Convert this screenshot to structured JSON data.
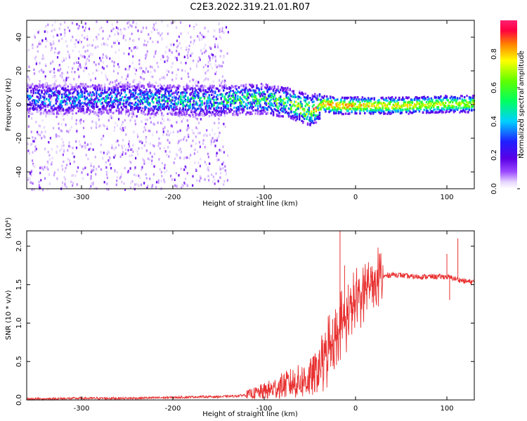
{
  "title": "C2E3.2022.319.21.01.R07",
  "chart_data": [
    {
      "type": "heatmap",
      "title": "",
      "xlabel": "Height of straight line (km)",
      "ylabel": "Frequency (Hz)",
      "xlim": [
        -360,
        130
      ],
      "ylim": [
        -50,
        50
      ],
      "xticks": [
        "-300",
        "-200",
        "-100",
        "0",
        "100"
      ],
      "yticks": [
        "-40",
        "-20",
        "0",
        "20",
        "40"
      ],
      "colorbar": {
        "label": "Normalized spectral amplitude",
        "range": [
          0,
          1
        ],
        "ticks": [
          "0.0",
          "0.2",
          "0.4",
          "0.6",
          "0.8"
        ]
      },
      "ridge": [
        {
          "x": -360,
          "f": 4
        },
        {
          "x": -300,
          "f": 4
        },
        {
          "x": -250,
          "f": 4
        },
        {
          "x": -200,
          "f": 3
        },
        {
          "x": -150,
          "f": 3
        },
        {
          "x": -100,
          "f": 4
        },
        {
          "x": -70,
          "f": 1
        },
        {
          "x": -50,
          "f": -3
        },
        {
          "x": -35,
          "f": 1
        },
        {
          "x": -20,
          "f": 0
        },
        {
          "x": 0,
          "f": 0
        },
        {
          "x": 50,
          "f": 0
        },
        {
          "x": 100,
          "f": 1
        },
        {
          "x": 130,
          "f": 1
        }
      ],
      "ridge_amplitude": [
        {
          "x": -360,
          "a": 0.35
        },
        {
          "x": -200,
          "a": 0.45
        },
        {
          "x": -100,
          "a": 0.55
        },
        {
          "x": -60,
          "a": 0.7
        },
        {
          "x": -30,
          "a": 0.85
        },
        {
          "x": 0,
          "a": 0.8
        },
        {
          "x": 130,
          "a": 0.7
        }
      ]
    },
    {
      "type": "line",
      "title": "",
      "xlabel": "Height of straight line (km)",
      "ylabel": "SNR (10 * v/v)",
      "y_multiplier": "(x10⁴)",
      "xlim": [
        -360,
        130
      ],
      "ylim": [
        0,
        2.2
      ],
      "xticks": [
        "-300",
        "-200",
        "-100",
        "0",
        "100"
      ],
      "yticks": [
        "0.0",
        "0.5",
        "1.0",
        "1.5",
        "2.0"
      ],
      "color": "#e83030",
      "series": [
        {
          "x": [
            -360,
            -300,
            -250,
            -200,
            -170,
            -150,
            -130,
            -110,
            -100,
            -90,
            -80,
            -70,
            -60,
            -50,
            -45,
            -40,
            -35,
            -30,
            -25,
            -20,
            -15,
            -10,
            -5,
            0,
            5,
            10,
            20,
            30,
            40,
            50,
            60,
            80,
            100,
            110,
            120,
            130
          ],
          "y": [
            0.01,
            0.02,
            0.02,
            0.03,
            0.04,
            0.04,
            0.05,
            0.08,
            0.1,
            0.13,
            0.17,
            0.2,
            0.22,
            0.25,
            0.3,
            0.38,
            0.5,
            0.62,
            0.75,
            0.85,
            0.95,
            1.05,
            1.15,
            1.25,
            1.35,
            1.43,
            1.52,
            1.6,
            1.63,
            1.62,
            1.6,
            1.6,
            1.6,
            1.57,
            1.54,
            1.53
          ],
          "spikes": [
            {
              "x": -17,
              "y": 2.2
            },
            {
              "x": -12,
              "y": 1.75
            },
            {
              "x": -8,
              "y": 1.5
            },
            {
              "x": -25,
              "y": 1.05
            },
            {
              "x": -40,
              "y": 0.6
            },
            {
              "x": 100,
              "y": 1.9
            },
            {
              "x": 112,
              "y": 2.1
            },
            {
              "x": 103,
              "y": 1.3
            }
          ]
        }
      ]
    }
  ]
}
